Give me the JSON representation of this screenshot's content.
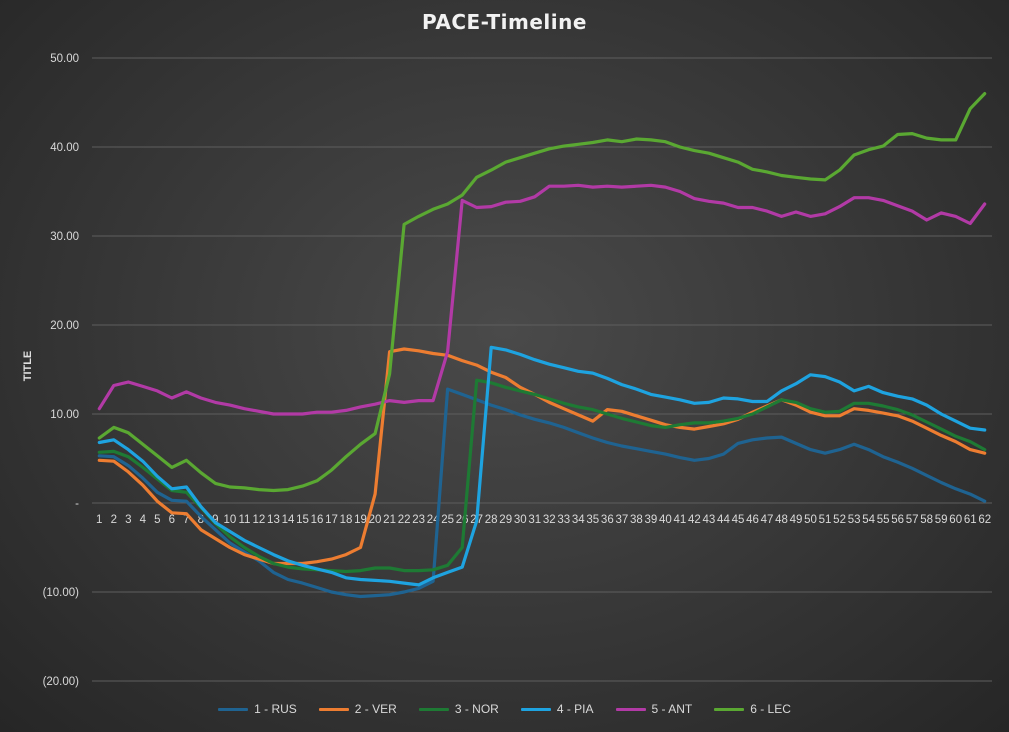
{
  "chart_data": {
    "type": "line",
    "title": "PACE-Timeline",
    "xlabel": "",
    "ylabel": "TITLE",
    "ylim": [
      -20,
      50
    ],
    "y_ticks": [
      -20,
      -10,
      0,
      10,
      20,
      30,
      40,
      50
    ],
    "y_tick_labels": [
      "(20.00)",
      "(10.00)",
      "-",
      "10.00",
      "20.00",
      "30.00",
      "40.00",
      "50.00"
    ],
    "grid": "horizontal",
    "legend_position": "bottom",
    "x": [
      1,
      2,
      3,
      4,
      5,
      6,
      7,
      8,
      9,
      10,
      11,
      12,
      13,
      14,
      15,
      16,
      17,
      18,
      19,
      20,
      21,
      22,
      23,
      24,
      25,
      26,
      27,
      28,
      29,
      30,
      31,
      32,
      33,
      34,
      35,
      36,
      37,
      38,
      39,
      40,
      41,
      42,
      43,
      44,
      45,
      46,
      47,
      48,
      49,
      50,
      51,
      52,
      53,
      54,
      55,
      56,
      57,
      58,
      59,
      60,
      61,
      62
    ],
    "series": [
      {
        "name": "1 - RUS",
        "color": "#1f6391",
        "values": [
          5.3,
          5.2,
          4.2,
          2.8,
          1.2,
          0.3,
          0.2,
          -1.5,
          -3,
          -4.5,
          -5.5,
          -6.5,
          -7.8,
          -8.6,
          -9,
          -9.5,
          -10,
          -10.3,
          -10.5,
          -10.4,
          -10.3,
          -10,
          -9.6,
          -8.8,
          12.8,
          12.2,
          11.6,
          11,
          10.5,
          9.9,
          9.4,
          9,
          8.5,
          7.9,
          7.3,
          6.8,
          6.4,
          6.1,
          5.8,
          5.5,
          5.1,
          4.8,
          5,
          5.5,
          6.7,
          7.1,
          7.3,
          7.4,
          6.7,
          6,
          5.6,
          6,
          6.6,
          6,
          5.2,
          4.6,
          3.9,
          3.1,
          2.3,
          1.6,
          1,
          0.2
        ]
      },
      {
        "name": "2 - VER",
        "color": "#ed7d31",
        "values": [
          4.8,
          4.7,
          3.5,
          2,
          0.2,
          -1.1,
          -1.2,
          -3,
          -4,
          -5,
          -5.8,
          -6.3,
          -6.8,
          -6.8,
          -6.8,
          -6.6,
          -6.3,
          -5.8,
          -5,
          1,
          17,
          17.3,
          17.1,
          16.8,
          16.6,
          16,
          15.5,
          14.7,
          14.1,
          13,
          12.2,
          11.3,
          10.6,
          9.9,
          9.2,
          10.5,
          10.3,
          9.8,
          9.3,
          8.8,
          8.5,
          8.3,
          8.6,
          8.9,
          9.4,
          10.2,
          10.9,
          11.6,
          11,
          10.2,
          9.8,
          9.8,
          10.6,
          10.4,
          10.1,
          9.8,
          9.2,
          8.4,
          7.6,
          6.9,
          6,
          5.6
        ]
      },
      {
        "name": "3 - NOR",
        "color": "#1e7a34",
        "values": [
          5.7,
          5.8,
          5.2,
          4,
          2.7,
          1.4,
          1.2,
          -0.5,
          -2.3,
          -3.8,
          -5,
          -6,
          -6.8,
          -7.2,
          -7.4,
          -7.5,
          -7.6,
          -7.7,
          -7.6,
          -7.3,
          -7.3,
          -7.6,
          -7.6,
          -7.5,
          -7,
          -5,
          13.8,
          13.5,
          13,
          12.6,
          12.2,
          11.7,
          11.2,
          10.8,
          10.5,
          10,
          9.5,
          9.1,
          8.7,
          8.5,
          8.8,
          9,
          9,
          9.2,
          9.5,
          10,
          10.8,
          11.6,
          11.3,
          10.6,
          10.2,
          10.3,
          11.2,
          11.2,
          10.9,
          10.5,
          9.9,
          9.1,
          8.3,
          7.5,
          6.9,
          6
        ]
      },
      {
        "name": "4 - PIA",
        "color": "#1ea3e0",
        "values": [
          6.8,
          7.1,
          6,
          4.7,
          3,
          1.6,
          1.8,
          -0.4,
          -2.2,
          -3.2,
          -4.2,
          -5,
          -5.8,
          -6.5,
          -7,
          -7.4,
          -7.8,
          -8.4,
          -8.6,
          -8.7,
          -8.8,
          -9,
          -9.2,
          -8.4,
          -7.8,
          -7.2,
          -2,
          17.5,
          17.2,
          16.7,
          16.1,
          15.6,
          15.2,
          14.8,
          14.6,
          14,
          13.3,
          12.8,
          12.2,
          11.9,
          11.6,
          11.2,
          11.3,
          11.8,
          11.7,
          11.4,
          11.4,
          12.6,
          13.4,
          14.4,
          14.2,
          13.6,
          12.6,
          13.1,
          12.4,
          12,
          11.7,
          11,
          10,
          9.2,
          8.4,
          8.2
        ]
      },
      {
        "name": "5 - ANT",
        "color": "#b23aa6",
        "values": [
          10.6,
          13.2,
          13.6,
          13.1,
          12.6,
          11.8,
          12.5,
          11.8,
          11.3,
          11,
          10.6,
          10.3,
          10,
          10,
          10,
          10.2,
          10.2,
          10.4,
          10.8,
          11.1,
          11.5,
          11.3,
          11.5,
          11.5,
          17,
          34,
          33.2,
          33.3,
          33.8,
          33.9,
          34.4,
          35.6,
          35.6,
          35.7,
          35.5,
          35.6,
          35.5,
          35.6,
          35.7,
          35.5,
          35,
          34.2,
          33.9,
          33.7,
          33.2,
          33.2,
          32.8,
          32.2,
          32.7,
          32.2,
          32.5,
          33.3,
          34.3,
          34.3,
          34,
          33.4,
          32.8,
          31.8,
          32.6,
          32.2,
          31.4,
          33.6
        ]
      },
      {
        "name": "6 - LEC",
        "color": "#5aa832",
        "values": [
          7.3,
          8.5,
          7.9,
          6.6,
          5.3,
          4,
          4.8,
          3.4,
          2.2,
          1.8,
          1.7,
          1.5,
          1.4,
          1.5,
          1.9,
          2.5,
          3.7,
          5.2,
          6.6,
          7.8,
          14.5,
          31.3,
          32.2,
          33,
          33.6,
          34.6,
          36.6,
          37.4,
          38.3,
          38.8,
          39.3,
          39.8,
          40.1,
          40.3,
          40.5,
          40.8,
          40.6,
          40.9,
          40.8,
          40.6,
          40,
          39.6,
          39.3,
          38.8,
          38.3,
          37.5,
          37.2,
          36.8,
          36.6,
          36.4,
          36.3,
          37.4,
          39.1,
          39.7,
          40.1,
          41.4,
          41.5,
          41,
          40.8,
          40.8,
          44.3,
          46
        ]
      }
    ]
  }
}
